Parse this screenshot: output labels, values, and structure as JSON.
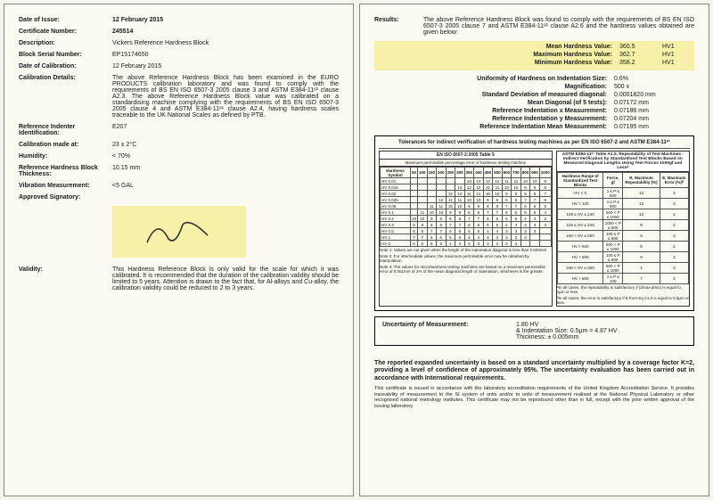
{
  "left": {
    "date_issue_l": "Date of Issue:",
    "date_issue_v": "12 February 2015",
    "cert_no_l": "Certificate Number:",
    "cert_no_v": "245514",
    "desc_l": "Description:",
    "desc_v": "Vickers Reference Hardness Block",
    "serial_l": "Block Serial Number:",
    "serial_v": "EP15174650",
    "cal_date_l": "Date of Calibration:",
    "cal_date_v": "12 February 2015",
    "cal_det_l": "Calibration Details:",
    "cal_det_v": "The above Reference Hardness Block has been examined in the EURO PRODUCTS calibration laboratory and was found to comply with the requirements of BS EN ISO 6507-3 2005 clause 3 and ASTM E384-11ᵉ¹ clause A2.3. The above Reference Hardness Block value was calibrated on a standardising machine complying with the requirements of BS EN ISO 6507-3 2005 clause 4 and ASTM E384-11ᵉ¹ clause A2.4, having hardness scales traceable to the UK National Scales as defined by PTB.",
    "indenter_l": "Reference Indenter Identification:",
    "indenter_v": "E207",
    "cal_at_l": "Calibration made at:",
    "cal_at_v": "23 ± 2°C",
    "humidity_l": "Humidity:",
    "humidity_v": "< 70%",
    "thickness_l": "Reference Hardness Block Thickness:",
    "thickness_v": "10.15 mm",
    "vib_l": "Vibration Measurement:",
    "vib_v": "<5 GAL",
    "sig_l": "Approved Signatory:",
    "validity_l": "Validity:",
    "validity_v": "This Hardness Reference Block is only valid for the scale for which it was calibrated. It is recommended that the duration of the calibration validity should be limited to 5 years. Attention is drawn to the fact that, for Al-alloys and Cu-alloy, the calibration validity could be reduced to 2 to 3 years."
  },
  "right": {
    "results_l": "Results:",
    "results_intro": "The above Reference Hardness Block was found to comply with the requirements of BS EN ISO 6507-3 2005 clause 7 and ASTM E384-11ᵉ¹ clause A2.6 and the hardness values obtained are given below:",
    "mean_l": "Mean Hardness Value:",
    "mean_v": "360.5",
    "unit": "HV1",
    "max_l": "Maximum Hardness Value:",
    "max_v": "362.7",
    "min_l": "Minimum Hardness Value:",
    "min_v": "358.2",
    "unif_l": "Uniformity of Hardness on Indentation Size:",
    "unif_v": "0.6%",
    "mag_l": "Magnification:",
    "mag_v": "500 x",
    "std_l": "Standard Deviation of measured diagonal:",
    "std_v": "0.0001820 mm",
    "diag_l": "Mean Diagonal (of 5 tests):",
    "diag_v": "0.07172 mm",
    "refx_l": "Reference Indentation x Measurement:",
    "refx_v": "0.07186 mm",
    "refy_l": "Reference Indentation y Measurement:",
    "refy_v": "0.07204 mm",
    "refm_l": "Reference Indentation Mean Measurement:",
    "refm_v": "0.07195 mm",
    "tol_title": "Tolerances for indirect verification of hardness testing machines as per EN ISO 6507-2 and ASTM E384-11ᵉ¹",
    "tol_left_head": "EN ISO 6507-2:2005 Table 5",
    "tol_left_sub": "Maximum permissible percentage error of hardness testing machine",
    "tol_right_head": "ASTM E384-11ᵉ¹ Table A1.5. Repeatability of Test Machines - Indirect Verification by Standardised Test Blocks Based on Measured Diagonal Lengths Using Test Forces 1000gf and Lessᴬ",
    "left_rows": [
      "HV 0.01",
      "HV 0.015",
      "HV 0.02",
      "HV 0.025",
      "HV 0.05",
      "HV 0.1",
      "HV 0.2",
      "HV 0.3",
      "HV 0.5",
      "HV 1",
      "HV 2"
    ],
    "left_cols": [
      "50",
      "100",
      "150",
      "200",
      "250",
      "300",
      "350",
      "400",
      "450",
      "500",
      "600",
      "700",
      "800",
      "900",
      "1000"
    ],
    "right_rows": [
      [
        "HV < 0",
        "1 ≤ P ≤ 500",
        "13",
        "3"
      ],
      [
        "HV < 100",
        "1 ≤ P ≤ 500",
        "13",
        "3"
      ],
      [
        "100 ≤ HV ≤ 240",
        "500 < P ≤ 1000",
        "13",
        "2"
      ],
      [
        "100 ≤ HV ≤ 240",
        "1000 < P ≤ 500",
        "8",
        "2"
      ],
      [
        "240 < HV ≤ 600",
        "100 ≤ P ≤ 500",
        "5",
        "3"
      ],
      [
        "HV > 600",
        "500 < P ≤ 1000",
        "6",
        "2"
      ],
      [
        "HV > 600",
        "100 ≤ P ≤ 500",
        "9",
        "3"
      ],
      [
        "240 < HV ≤ 600",
        "500 < P ≤ 1000",
        "4",
        "3"
      ],
      [
        "HV > 600",
        "1 ≤ P ≤ 100",
        "7",
        "3"
      ]
    ],
    "note1": "Note 1: Values are not given when the length of the indentation diagonal is less than 0.020mm",
    "note2": "Note 2: For intermediate values, the maximum permissible error may be obtained by interpolation.",
    "note3": "Note 3: The values for microhardness testing machines are based on a maximum permissible error of 0.001mm or 2% of the mean diagonal length of indentation, whichever is the greater.",
    "note_r1": "ᴬIn all cases, the repeatability is satisfactory if (dmax-dmin) is equal to 1µm or less.",
    "note_r2": "ᴮIn all cases, the error is satisfactory if E from Eq A1.2 is equal to 0.5µm or less.",
    "uom_l": "Uncertainty of Measurement:",
    "uom_v1": "1.80 HV",
    "uom_v2": "& Indentation Size: 0.5µm = 4.87 HV",
    "uom_v3": "Thickness: ± 0.005mm",
    "footer_bold": "The reported expanded uncertainty is based on a standard uncertainty multiplied by a coverage factor K=2, providing a level of confidence of approximately 95%. The uncertainty evaluation has been carried out in accordance with International requirements.",
    "footer_small": "This certificate is issued in accordance with the laboratory accreditation requirements of the United Kingdom Accreditation Service. It provides traceability of measurement to the SI system of units and/or to units of measurement realised at the National Physical Laboratory or other recognised national metrology institutes. This certificate may not be reproduced other than in full, except with the prior written approval of the issuing laboratory."
  }
}
